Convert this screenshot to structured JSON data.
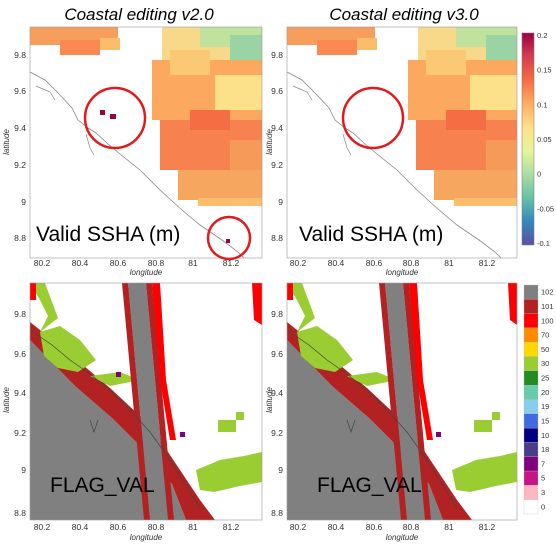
{
  "chart_data": [
    {
      "type": "heatmap",
      "title": "Coastal editing v2.0",
      "annotation": "Valid SSHA (m)",
      "xlabel": "longitude",
      "ylabel": "latitude",
      "xlim": [
        80.1,
        81.3
      ],
      "ylim": [
        8.72,
        9.97
      ],
      "xticks": [
        "80.2",
        "80.4",
        "80.6",
        "80.8",
        "81",
        "81.2"
      ],
      "yticks": [
        "8.8",
        "9",
        "9.2",
        "9.4",
        "9.6",
        "9.8"
      ],
      "highlight_circles": [
        {
          "lon": 80.57,
          "lat": 9.52
        },
        {
          "lon": 81.15,
          "lat": 8.79
        }
      ]
    },
    {
      "type": "heatmap",
      "title": "Coastal editing v3.0",
      "annotation": "Valid SSHA (m)",
      "xlabel": "longitude",
      "ylabel": "latitude",
      "xlim": [
        80.1,
        81.3
      ],
      "ylim": [
        8.72,
        9.97
      ],
      "xticks": [
        "80.2",
        "80.4",
        "80.6",
        "80.8",
        "81",
        "81.2"
      ],
      "yticks": [
        "8.8",
        "9",
        "9.2",
        "9.4",
        "9.6",
        "9.8"
      ],
      "highlight_circles": [
        {
          "lon": 80.57,
          "lat": 9.5
        }
      ]
    },
    {
      "type": "heatmap",
      "annotation": "FLAG_VAL",
      "xlabel": "longitude",
      "ylabel": "latitude",
      "xlim": [
        80.1,
        81.3
      ],
      "ylim": [
        8.72,
        9.97
      ],
      "xticks": [
        "80.2",
        "80.4",
        "80.6",
        "80.8",
        "81",
        "81.2"
      ],
      "yticks": [
        "8.8",
        "9",
        "9.2",
        "9.4",
        "9.6",
        "9.8"
      ]
    },
    {
      "type": "heatmap",
      "annotation": "FLAG_VAL",
      "xlabel": "longitude",
      "ylabel": "latitude",
      "xlim": [
        80.1,
        81.3
      ],
      "ylim": [
        8.72,
        9.97
      ],
      "xticks": [
        "80.2",
        "80.4",
        "80.6",
        "80.8",
        "81",
        "81.2"
      ],
      "yticks": [
        "8.8",
        "9",
        "9.2",
        "9.4",
        "9.6",
        "9.8"
      ]
    }
  ],
  "ssha_colorbar": {
    "range": [
      -0.1,
      0.2
    ],
    "ticks": [
      "0.2",
      "0.15",
      "0.1",
      "0.05",
      "0",
      "-0.05",
      "-0.1"
    ],
    "colors": [
      "#5e4fa2",
      "#3288bd",
      "#66c2a5",
      "#abdda4",
      "#e6f598",
      "#fee08b",
      "#fdae61",
      "#f46d43",
      "#d53e4f",
      "#9e0142"
    ]
  },
  "flag_legend": [
    {
      "label": "102",
      "color": "#808080"
    },
    {
      "label": "101",
      "color": "#b22222"
    },
    {
      "label": "100",
      "color": "#ff0000"
    },
    {
      "label": "70",
      "color": "#ff8c00"
    },
    {
      "label": "50",
      "color": "#ffd700"
    },
    {
      "label": "30",
      "color": "#9acd32"
    },
    {
      "label": "25",
      "color": "#228b22"
    },
    {
      "label": "20",
      "color": "#66cdaa"
    },
    {
      "label": "19",
      "color": "#87ceeb"
    },
    {
      "label": "15",
      "color": "#4169e1"
    },
    {
      "label": "10",
      "color": "#000080"
    },
    {
      "label": "18",
      "color": "#483d8b"
    },
    {
      "label": "7",
      "color": "#800080"
    },
    {
      "label": "5",
      "color": "#c71585"
    },
    {
      "label": "3",
      "color": "#ffb6c1"
    },
    {
      "label": "0",
      "color": "#ffffff"
    }
  ]
}
